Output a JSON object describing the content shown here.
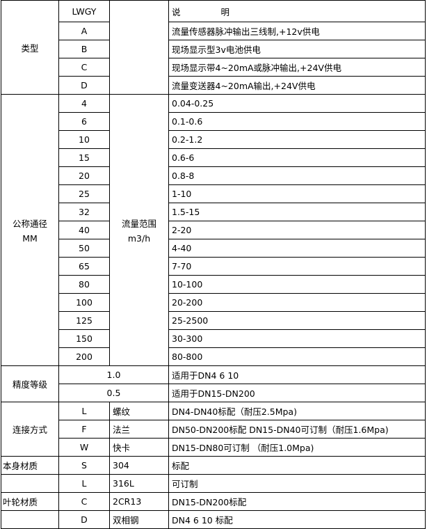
{
  "header": {
    "code": "LWGY",
    "desc_a": "说",
    "desc_b": "明"
  },
  "type": {
    "label": "类型",
    "rows": [
      {
        "code": "A",
        "desc": "流量传感器脉冲输出三线制,+12v供电"
      },
      {
        "code": "B",
        "desc": "现场显示型3v电池供电"
      },
      {
        "code": "C",
        "desc": "现场显示带4~20mA或脉冲输出,+24V供电"
      },
      {
        "code": "D",
        "desc": "流量变送器4~20mA输出,+24V供电"
      }
    ]
  },
  "diameter": {
    "label": "公称通径",
    "unit": "MM",
    "range_label": "流量范围",
    "range_unit": "m3/h",
    "rows": [
      {
        "size": "4",
        "range": "0.04-0.25"
      },
      {
        "size": "6",
        "range": "0.1-0.6"
      },
      {
        "size": "10",
        "range": "0.2-1.2"
      },
      {
        "size": "15",
        "range": "0.6-6"
      },
      {
        "size": "20",
        "range": "0.8-8"
      },
      {
        "size": "25",
        "range": "1-10"
      },
      {
        "size": "32",
        "range": "1.5-15"
      },
      {
        "size": "40",
        "range": "2-20"
      },
      {
        "size": "50",
        "range": "4-40"
      },
      {
        "size": "65",
        "range": "7-70"
      },
      {
        "size": "80",
        "range": "10-100"
      },
      {
        "size": "100",
        "range": "20-200"
      },
      {
        "size": "125",
        "range": "25-2500"
      },
      {
        "size": "150",
        "range": "30-300"
      },
      {
        "size": "200",
        "range": "80-800"
      }
    ]
  },
  "accuracy": {
    "label": "精度等级",
    "rows": [
      {
        "grade": "1.0",
        "desc": "适用于DN4  6  10"
      },
      {
        "grade": "0.5",
        "desc": "适用于DN15-DN200"
      }
    ]
  },
  "connection": {
    "label": "连接方式",
    "rows": [
      {
        "code": "L",
        "name": "螺纹",
        "desc": "DN4-DN40标配（耐压2.5Mpa)"
      },
      {
        "code": "F",
        "name": "法兰",
        "desc": "DN50-DN200标配 DN15-DN40可订制（耐压1.6Mpa)"
      },
      {
        "code": "W",
        "name": "快卡",
        "desc": "DN15-DN80可订制 （耐压1.0Mpa)"
      }
    ]
  },
  "body_material": {
    "label": "本身材质",
    "rows": [
      {
        "code": "S",
        "name": "304",
        "desc": "标配"
      },
      {
        "code": "L",
        "name": "316L",
        "desc": "可订制"
      }
    ]
  },
  "impeller_material": {
    "label": "叶轮材质",
    "rows": [
      {
        "code": "C",
        "name": "2CR13",
        "desc": "DN15-DN200标配"
      },
      {
        "code": "D",
        "name": "双相钢",
        "desc": "DN4 6 10 标配"
      }
    ]
  }
}
